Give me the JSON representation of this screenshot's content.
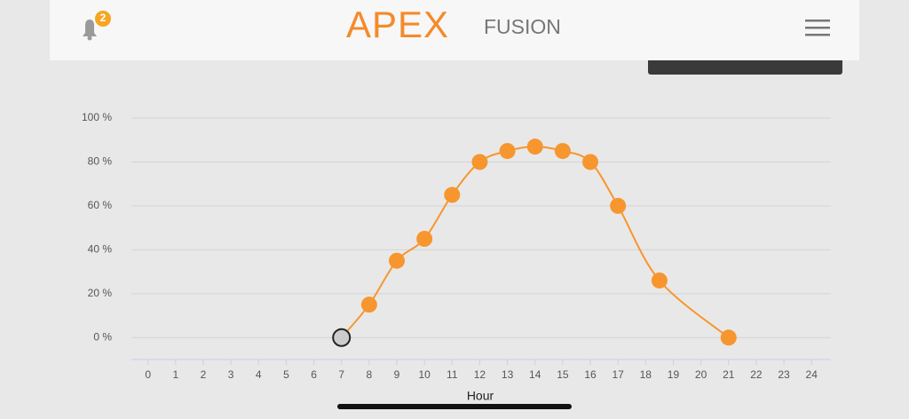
{
  "header": {
    "notification_count": "2",
    "logo_main": "APEX",
    "logo_sub": "FUSION"
  },
  "chart_data": {
    "type": "line",
    "x_label": "Hour",
    "x": [
      7,
      8,
      9,
      10,
      11,
      12,
      13,
      14,
      15,
      16,
      17,
      18.5,
      21
    ],
    "series": [
      {
        "color": "#f7962e",
        "values": [
          0,
          15,
          35,
          45,
          65,
          80,
          85,
          87,
          85,
          80,
          60,
          26,
          0
        ],
        "point_colors": [
          "#cccccc",
          "#f7962e",
          "#f7962e",
          "#f7962e",
          "#f7962e",
          "#f7962e",
          "#f7962e",
          "#f7962e",
          "#f7962e",
          "#f7962e",
          "#f7962e",
          "#f7962e",
          "#f7962e"
        ]
      }
    ],
    "xlim": [
      -0.6,
      24.7
    ],
    "xticks": [
      0,
      1,
      2,
      3,
      4,
      5,
      6,
      7,
      8,
      9,
      10,
      11,
      12,
      13,
      14,
      15,
      16,
      17,
      18,
      19,
      20,
      21,
      22,
      23,
      24
    ],
    "ylim": [
      -10,
      100
    ],
    "yticks": [
      {
        "value": 0,
        "label": "0 %"
      },
      {
        "value": 20,
        "label": "20 %"
      },
      {
        "value": 40,
        "label": "40 %"
      },
      {
        "value": 60,
        "label": "60 %"
      },
      {
        "value": 80,
        "label": "80 %"
      },
      {
        "value": 100,
        "label": "100 %"
      }
    ],
    "grid": true
  }
}
